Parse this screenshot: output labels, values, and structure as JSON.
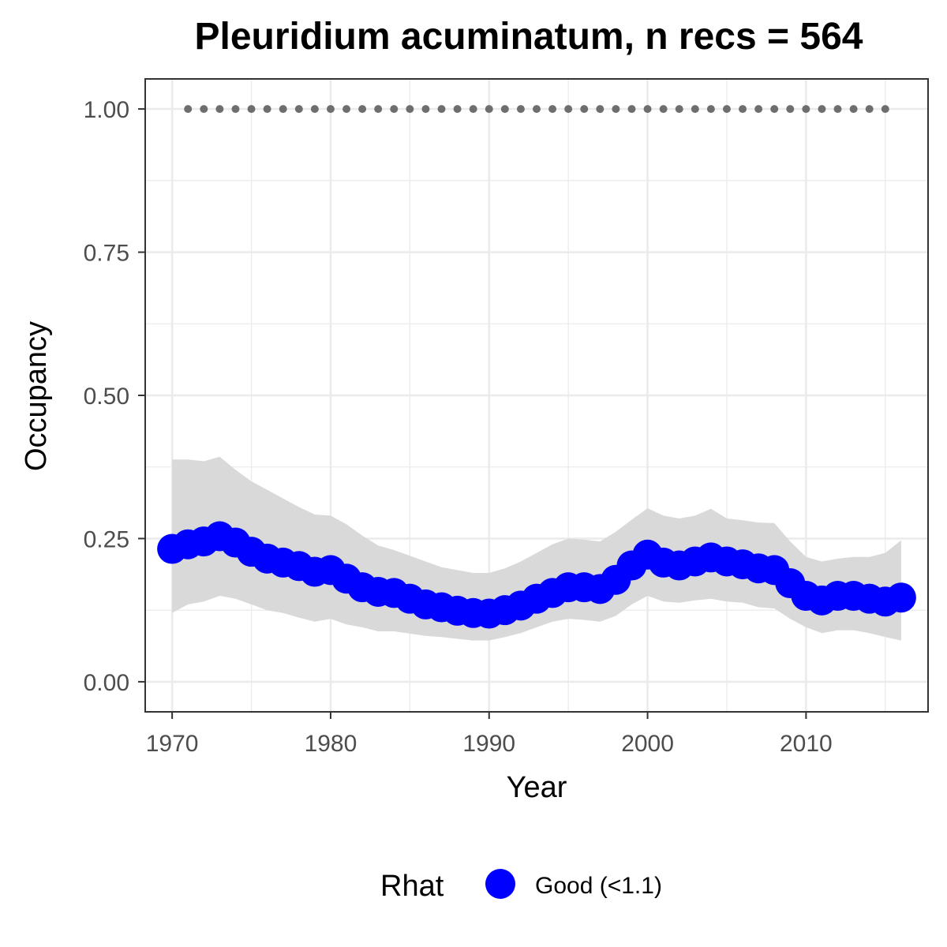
{
  "chart_data": {
    "type": "line",
    "title": "Pleuridium acuminatum, n recs = 564",
    "xlabel": "Year",
    "ylabel": "Occupancy",
    "xlim": [
      1968.3,
      2017.7
    ],
    "ylim": [
      -0.0525,
      1.0525
    ],
    "x_ticks": [
      1970,
      1980,
      1990,
      2000,
      2010
    ],
    "x_tick_labels": [
      "1970",
      "1980",
      "1990",
      "2000",
      "2010"
    ],
    "y_ticks": [
      0,
      0.25,
      0.5,
      0.75,
      1.0
    ],
    "y_tick_labels": [
      "0.00",
      "0.25",
      "0.50",
      "0.75",
      "1.00"
    ],
    "grid": true,
    "legend": {
      "title": "Rhat",
      "placement": "bottom",
      "entries": [
        {
          "label": "Good (<1.1)",
          "color": "#0000ff"
        }
      ]
    },
    "colors": {
      "points": "#0000ff",
      "ribbon": "#d9d9d9",
      "reference_dots": "#6e6e6e",
      "grid": "#ebebeb",
      "panel_border": "#333333"
    },
    "series": [
      {
        "name": "Good (<1.1)",
        "x": [
          1970,
          1971,
          1972,
          1973,
          1974,
          1975,
          1976,
          1977,
          1978,
          1979,
          1980,
          1981,
          1982,
          1983,
          1984,
          1985,
          1986,
          1987,
          1988,
          1989,
          1990,
          1991,
          1992,
          1993,
          1994,
          1995,
          1996,
          1997,
          1998,
          1999,
          2000,
          2001,
          2002,
          2003,
          2004,
          2005,
          2006,
          2007,
          2008,
          2009,
          2010,
          2011,
          2012,
          2013,
          2014,
          2015,
          2016
        ],
        "y": [
          0.232,
          0.24,
          0.245,
          0.254,
          0.243,
          0.227,
          0.215,
          0.208,
          0.202,
          0.192,
          0.195,
          0.18,
          0.165,
          0.157,
          0.155,
          0.145,
          0.135,
          0.13,
          0.124,
          0.12,
          0.119,
          0.125,
          0.133,
          0.145,
          0.155,
          0.165,
          0.165,
          0.162,
          0.178,
          0.203,
          0.222,
          0.208,
          0.203,
          0.21,
          0.217,
          0.21,
          0.205,
          0.198,
          0.195,
          0.172,
          0.15,
          0.142,
          0.15,
          0.15,
          0.145,
          0.14,
          0.147
        ],
        "lower": [
          0.12,
          0.135,
          0.14,
          0.15,
          0.145,
          0.135,
          0.125,
          0.12,
          0.112,
          0.105,
          0.11,
          0.1,
          0.095,
          0.088,
          0.088,
          0.084,
          0.08,
          0.078,
          0.075,
          0.072,
          0.072,
          0.078,
          0.085,
          0.095,
          0.105,
          0.11,
          0.108,
          0.105,
          0.115,
          0.135,
          0.15,
          0.14,
          0.138,
          0.142,
          0.145,
          0.14,
          0.138,
          0.13,
          0.128,
          0.11,
          0.095,
          0.085,
          0.09,
          0.09,
          0.085,
          0.078,
          0.072
        ],
        "upper": [
          0.388,
          0.388,
          0.385,
          0.393,
          0.37,
          0.35,
          0.335,
          0.32,
          0.305,
          0.292,
          0.29,
          0.275,
          0.255,
          0.238,
          0.23,
          0.22,
          0.21,
          0.2,
          0.195,
          0.19,
          0.19,
          0.198,
          0.21,
          0.225,
          0.24,
          0.25,
          0.248,
          0.245,
          0.262,
          0.283,
          0.303,
          0.29,
          0.285,
          0.29,
          0.302,
          0.285,
          0.282,
          0.278,
          0.277,
          0.245,
          0.218,
          0.21,
          0.215,
          0.218,
          0.218,
          0.225,
          0.247
        ]
      },
      {
        "name": "",
        "x": [
          1971,
          1972,
          1973,
          1974,
          1975,
          1976,
          1977,
          1978,
          1979,
          1980,
          1981,
          1982,
          1983,
          1984,
          1985,
          1986,
          1987,
          1988,
          1989,
          1990,
          1991,
          1992,
          1993,
          1994,
          1995,
          1996,
          1997,
          1998,
          1999,
          2000,
          2001,
          2002,
          2003,
          2004,
          2005,
          2006,
          2007,
          2008,
          2009,
          2010,
          2011,
          2012,
          2013,
          2014,
          2015
        ],
        "y": [
          1,
          1,
          1,
          1,
          1,
          1,
          1,
          1,
          1,
          1,
          1,
          1,
          1,
          1,
          1,
          1,
          1,
          1,
          1,
          1,
          1,
          1,
          1,
          1,
          1,
          1,
          1,
          1,
          1,
          1,
          1,
          1,
          1,
          1,
          1,
          1,
          1,
          1,
          1,
          1,
          1,
          1,
          1,
          1,
          1
        ]
      }
    ]
  }
}
